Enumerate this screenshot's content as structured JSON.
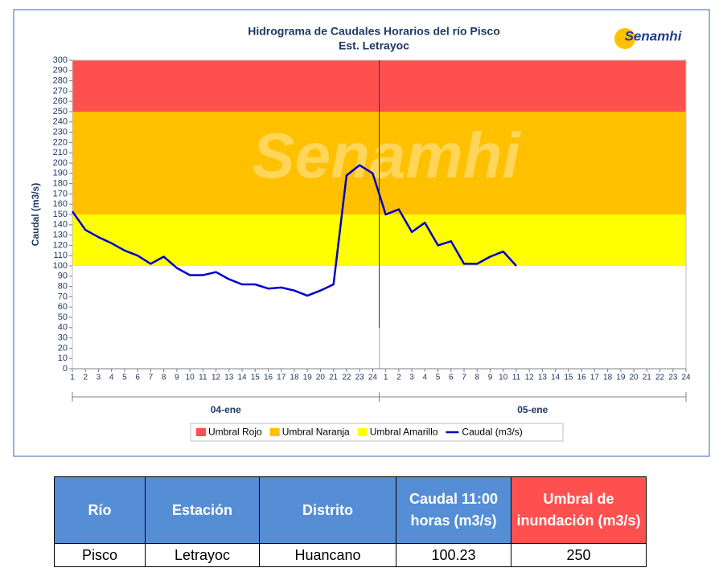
{
  "chart_data": {
    "type": "line",
    "title": "Hidrograma de Caudales Horarios del río Pisco",
    "subtitle": "Est. Letrayoc",
    "logo": "Senamhi",
    "watermark": "Senamhi",
    "y_label": "Caudal  (m3/s)",
    "groups": [
      "04-ene",
      "05-ene"
    ],
    "categories": [
      1,
      2,
      3,
      4,
      5,
      6,
      7,
      8,
      9,
      10,
      11,
      12,
      13,
      14,
      15,
      16,
      17,
      18,
      19,
      20,
      21,
      22,
      23,
      24,
      1,
      2,
      3,
      4,
      5,
      6,
      7,
      8,
      9,
      10,
      11,
      12,
      13,
      14,
      15,
      16,
      17,
      18,
      19,
      20,
      21,
      22,
      23,
      24
    ],
    "ylim": [
      0,
      300
    ],
    "yticks": [
      0,
      10,
      20,
      30,
      40,
      50,
      60,
      70,
      80,
      90,
      100,
      110,
      120,
      130,
      140,
      150,
      160,
      170,
      180,
      190,
      200,
      210,
      220,
      230,
      240,
      250,
      260,
      270,
      280,
      290,
      300
    ],
    "thresholds": [
      {
        "name": "Umbral Rojo",
        "color": "#ff5050",
        "from": 250,
        "to": 300
      },
      {
        "name": "Umbral Naranja",
        "color": "#ffc000",
        "from": 150,
        "to": 250
      },
      {
        "name": "Umbral Amarillo",
        "color": "#ffff00",
        "from": 100,
        "to": 150
      }
    ],
    "series": [
      {
        "name": "Caudal (m3/s)",
        "color": "#0000cc",
        "values": [
          153,
          135,
          128,
          122,
          115,
          110,
          102,
          109,
          98,
          91,
          91,
          94,
          87,
          82,
          82,
          78,
          79,
          76,
          71,
          76,
          82,
          188,
          198,
          190,
          150,
          155,
          133,
          142,
          120,
          124,
          102,
          102,
          109,
          114,
          100,
          null,
          null,
          null,
          null,
          null,
          null,
          null,
          null,
          null,
          null,
          null,
          null,
          null
        ]
      }
    ]
  },
  "table": {
    "headers": [
      "Río",
      "Estación",
      "Distrito",
      "Caudal 11:00 horas (m3/s)",
      "Umbral de inundación (m3/s)"
    ],
    "rows": [
      [
        "Pisco",
        "Letrayoc",
        "Huancano",
        "100.23",
        "250"
      ]
    ]
  }
}
